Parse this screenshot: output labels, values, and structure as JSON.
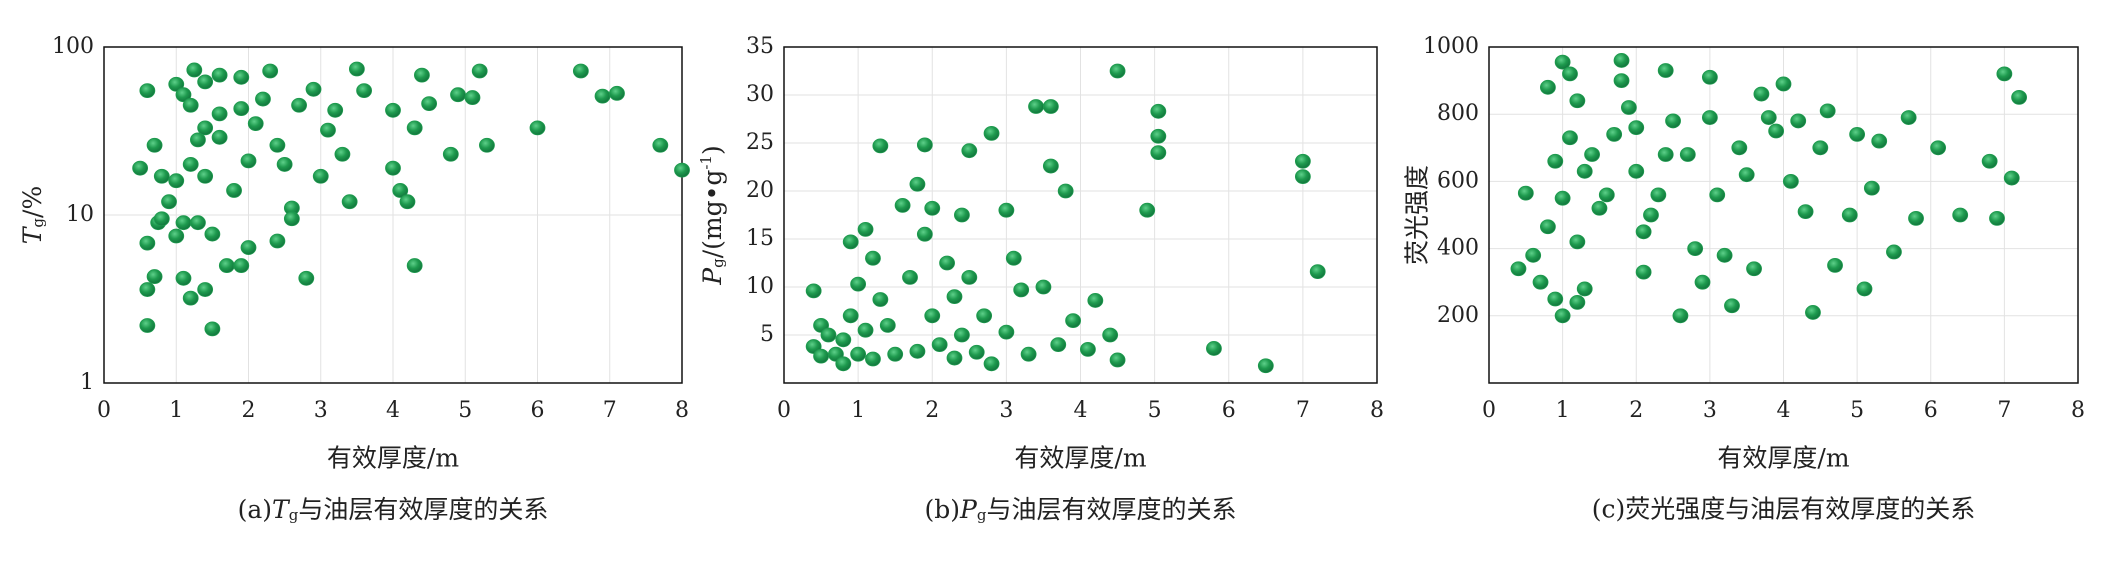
{
  "chart_data": [
    {
      "type": "scatter",
      "color": "#1e9a4e",
      "yscale": "log",
      "grid": true,
      "xlabel": "有效厚度/m",
      "ylabel": [
        {
          "text": "T",
          "style": "italic"
        },
        {
          "text": "g",
          "style": "sub"
        },
        {
          "text": "/%",
          "style": "normal"
        }
      ],
      "caption": [
        {
          "text": "(a)",
          "style": "normal"
        },
        {
          "text": "T",
          "style": "italic"
        },
        {
          "text": "g",
          "style": "sub"
        },
        {
          "text": "与油层有效厚度的关系",
          "style": "normal"
        }
      ],
      "xlim": [
        0,
        8
      ],
      "xticks": [
        0,
        1,
        2,
        3,
        4,
        5,
        6,
        7,
        8
      ],
      "ylim": [
        1,
        100
      ],
      "yticks": [
        1,
        10,
        100
      ],
      "x": [
        0.5,
        0.6,
        0.6,
        0.6,
        0.6,
        0.7,
        0.7,
        0.75,
        0.8,
        0.8,
        0.9,
        1.0,
        1.0,
        1.0,
        1.1,
        1.1,
        1.1,
        1.2,
        1.2,
        1.2,
        1.25,
        1.3,
        1.3,
        1.4,
        1.4,
        1.4,
        1.4,
        1.5,
        1.5,
        1.6,
        1.6,
        1.6,
        1.7,
        1.8,
        1.9,
        1.9,
        1.9,
        2.0,
        2.0,
        2.1,
        2.2,
        2.3,
        2.4,
        2.4,
        2.5,
        2.6,
        2.6,
        2.7,
        2.8,
        2.9,
        3.0,
        3.1,
        3.2,
        3.3,
        3.4,
        3.5,
        3.6,
        4.0,
        4.0,
        4.1,
        4.2,
        4.3,
        4.3,
        4.4,
        4.5,
        4.8,
        4.9,
        5.1,
        5.2,
        5.3,
        6.0,
        6.6,
        6.9,
        7.1,
        7.7,
        8.0
      ],
      "values": [
        19,
        55,
        6.8,
        3.6,
        2.2,
        4.3,
        26,
        9,
        9.5,
        17,
        12,
        60,
        16,
        7.5,
        52,
        9,
        4.2,
        45,
        20,
        3.2,
        73,
        28,
        9,
        62,
        33,
        17,
        3.6,
        7.7,
        2.1,
        68,
        40,
        29,
        5,
        14,
        66,
        43,
        5,
        6.4,
        21,
        35,
        49,
        72,
        7,
        26,
        20,
        11,
        9.5,
        45,
        4.2,
        56,
        17,
        32,
        42,
        23,
        12,
        74,
        55,
        42,
        19,
        14,
        12,
        5,
        33,
        68,
        46,
        23,
        52,
        50,
        72,
        26,
        33,
        72,
        51,
        53,
        26,
        18.5
      ]
    },
    {
      "type": "scatter",
      "color": "#1e9a4e",
      "grid": true,
      "xlabel": "有效厚度/m",
      "ylabel": [
        {
          "text": "P",
          "style": "italic"
        },
        {
          "text": "g",
          "style": "sub"
        },
        {
          "text": "/(mg•g",
          "style": "normal"
        },
        {
          "text": "-1",
          "style": "sup"
        },
        {
          "text": ")",
          "style": "normal"
        }
      ],
      "caption": [
        {
          "text": "(b)",
          "style": "normal"
        },
        {
          "text": "P",
          "style": "italic"
        },
        {
          "text": "g",
          "style": "sub"
        },
        {
          "text": "与油层有效厚度的关系",
          "style": "normal"
        }
      ],
      "xlim": [
        0,
        8
      ],
      "xticks": [
        0,
        1,
        2,
        3,
        4,
        5,
        6,
        7,
        8
      ],
      "ylim": [
        0,
        35
      ],
      "yticks": [
        5,
        10,
        15,
        20,
        25,
        30,
        35
      ],
      "x": [
        0.4,
        0.4,
        0.5,
        0.5,
        0.6,
        0.7,
        0.8,
        0.8,
        0.9,
        0.9,
        1.0,
        1.0,
        1.1,
        1.1,
        1.2,
        1.2,
        1.3,
        1.3,
        1.4,
        1.5,
        1.6,
        1.7,
        1.8,
        1.8,
        1.9,
        1.9,
        2.0,
        2.0,
        2.1,
        2.2,
        2.3,
        2.3,
        2.4,
        2.4,
        2.5,
        2.5,
        2.6,
        2.7,
        2.8,
        2.8,
        3.0,
        3.0,
        3.1,
        3.2,
        3.3,
        3.4,
        3.5,
        3.6,
        3.6,
        3.7,
        3.8,
        3.9,
        4.1,
        4.2,
        4.4,
        4.5,
        4.5,
        4.9,
        5.05,
        5.05,
        5.05,
        5.8,
        6.5,
        7.0,
        7.0,
        7.2
      ],
      "values": [
        9.6,
        3.8,
        2.8,
        6,
        5,
        3,
        4.5,
        2,
        14.7,
        7,
        10.3,
        3,
        16,
        5.5,
        13,
        2.5,
        24.7,
        8.7,
        6,
        3,
        18.5,
        11,
        20.7,
        3.3,
        15.5,
        24.8,
        18.2,
        7,
        4,
        12.5,
        9,
        2.6,
        17.5,
        5,
        24.2,
        11,
        3.2,
        7,
        26,
        2,
        18,
        5.3,
        13,
        9.7,
        3,
        28.8,
        10,
        28.8,
        22.6,
        4,
        20,
        6.5,
        3.5,
        8.6,
        5,
        32.5,
        2.4,
        18,
        28.3,
        25.7,
        24,
        3.6,
        1.8,
        23.1,
        21.5,
        11.6
      ]
    },
    {
      "type": "scatter",
      "color": "#1e9a4e",
      "grid": true,
      "xlabel": "有效厚度/m",
      "ylabel": "荧光强度",
      "caption": "(c)荧光强度与油层有效厚度的关系",
      "xlim": [
        0,
        8
      ],
      "xticks": [
        0,
        1,
        2,
        3,
        4,
        5,
        6,
        7,
        8
      ],
      "ylim": [
        0,
        1000
      ],
      "yticks": [
        200,
        400,
        600,
        800,
        1000
      ],
      "x": [
        0.4,
        0.5,
        0.6,
        0.7,
        0.8,
        0.8,
        0.9,
        0.9,
        1.0,
        1.0,
        1.0,
        1.1,
        1.1,
        1.2,
        1.2,
        1.2,
        1.3,
        1.3,
        1.4,
        1.5,
        1.6,
        1.7,
        1.8,
        1.8,
        1.9,
        2.0,
        2.0,
        2.1,
        2.1,
        2.2,
        2.3,
        2.4,
        2.4,
        2.5,
        2.6,
        2.7,
        2.8,
        2.9,
        3.0,
        3.0,
        3.1,
        3.2,
        3.3,
        3.4,
        3.5,
        3.6,
        3.7,
        3.8,
        3.9,
        4.0,
        4.1,
        4.2,
        4.3,
        4.4,
        4.5,
        4.6,
        4.7,
        4.9,
        5.0,
        5.1,
        5.2,
        5.3,
        5.5,
        5.7,
        5.8,
        6.1,
        6.4,
        6.8,
        6.9,
        7.0,
        7.1,
        7.2
      ],
      "values": [
        340,
        565,
        380,
        300,
        465,
        880,
        660,
        250,
        955,
        550,
        200,
        920,
        730,
        840,
        420,
        240,
        630,
        280,
        680,
        520,
        560,
        740,
        960,
        900,
        820,
        760,
        630,
        330,
        450,
        500,
        560,
        930,
        680,
        780,
        200,
        680,
        400,
        300,
        910,
        790,
        560,
        380,
        230,
        700,
        620,
        340,
        860,
        790,
        750,
        890,
        600,
        780,
        510,
        210,
        700,
        810,
        350,
        500,
        740,
        280,
        580,
        720,
        390,
        790,
        490,
        700,
        500,
        660,
        490,
        920,
        610,
        850
      ]
    }
  ]
}
